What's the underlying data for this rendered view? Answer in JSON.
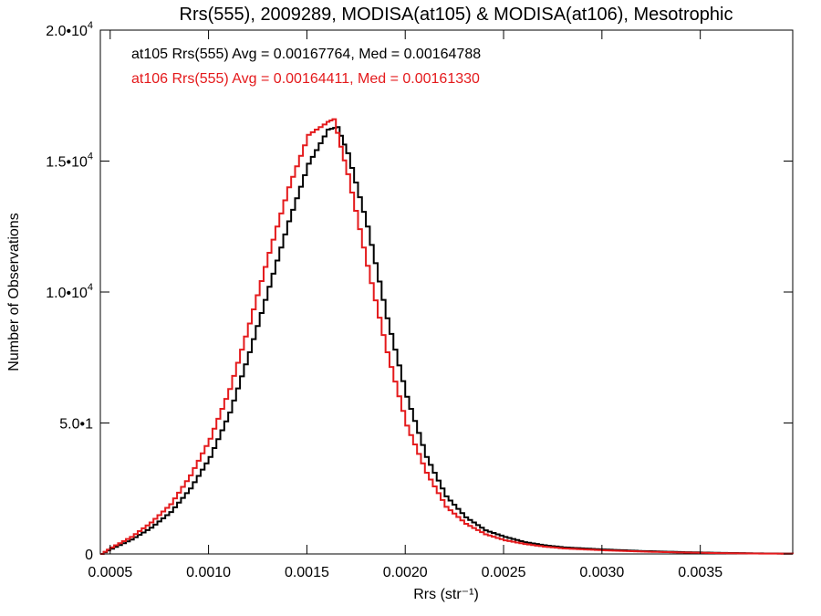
{
  "chart_data": {
    "type": "line",
    "title": "Rrs(555), 2009289, MODISA(at105) & MODISA(at106), Mesotrophic",
    "xlabel": "Rrs (str⁻¹)",
    "ylabel": "Number of Observations",
    "xlim": [
      0.00045,
      0.00397
    ],
    "ylim": [
      0,
      20000
    ],
    "x_ticks": [
      0.0005,
      0.001,
      0.0015,
      0.002,
      0.0025,
      0.003,
      0.0035
    ],
    "x_tick_labels": [
      "0.0005",
      "0.0010",
      "0.0015",
      "0.0020",
      "0.0025",
      "0.0030",
      "0.0035"
    ],
    "y_ticks": [
      0,
      5000,
      10000,
      15000,
      20000
    ],
    "y_tick_labels": [
      {
        "base": "0",
        "exp": ""
      },
      {
        "base": "5.0•1",
        "exp": ""
      },
      {
        "base": "1.0•10",
        "exp": "4"
      },
      {
        "base": "1.5•10",
        "exp": "4"
      },
      {
        "base": "2.0•10",
        "exp": "4"
      }
    ],
    "grid": false,
    "annotations": [
      {
        "text": "at105 Rrs(555) Avg = 0.00167764, Med = 0.00164788",
        "color": "#000000"
      },
      {
        "text": "at106 Rrs(555) Avg = 0.00164411, Med = 0.00161330",
        "color": "#e41a1c"
      }
    ],
    "series": [
      {
        "color": "#000000",
        "x": [
          0.00045,
          0.0005,
          0.0006,
          0.0007,
          0.0008,
          0.0009,
          0.001,
          0.0011,
          0.0012,
          0.0013,
          0.0014,
          0.0015,
          0.0016,
          0.00165,
          0.0017,
          0.0018,
          0.0019,
          0.002,
          0.0021,
          0.0022,
          0.0023,
          0.0024,
          0.0025,
          0.0026,
          0.0027,
          0.0028,
          0.003,
          0.0032,
          0.0034,
          0.0036,
          0.0038,
          0.00397
        ],
        "y": [
          0,
          200,
          550,
          1000,
          1600,
          2500,
          3700,
          5400,
          7700,
          10200,
          12700,
          14900,
          16200,
          16300,
          15300,
          12500,
          9000,
          6000,
          3700,
          2200,
          1400,
          900,
          650,
          450,
          330,
          250,
          170,
          110,
          70,
          40,
          20,
          10
        ]
      },
      {
        "color": "#e41a1c",
        "x": [
          0.00045,
          0.0005,
          0.0006,
          0.0007,
          0.0008,
          0.0009,
          0.001,
          0.0011,
          0.0012,
          0.0013,
          0.0014,
          0.0015,
          0.0016,
          0.00163,
          0.0017,
          0.0018,
          0.0019,
          0.002,
          0.0021,
          0.0022,
          0.0023,
          0.0024,
          0.0025,
          0.0026,
          0.0027,
          0.0028,
          0.003,
          0.0032,
          0.0034,
          0.0036,
          0.0038,
          0.00397
        ],
        "y": [
          0,
          250,
          650,
          1200,
          1900,
          3000,
          4400,
          6300,
          8800,
          11500,
          14000,
          16000,
          16500,
          16600,
          14500,
          11000,
          7700,
          4900,
          3100,
          1800,
          1150,
          750,
          520,
          380,
          280,
          210,
          140,
          90,
          55,
          30,
          15,
          8
        ]
      }
    ]
  }
}
